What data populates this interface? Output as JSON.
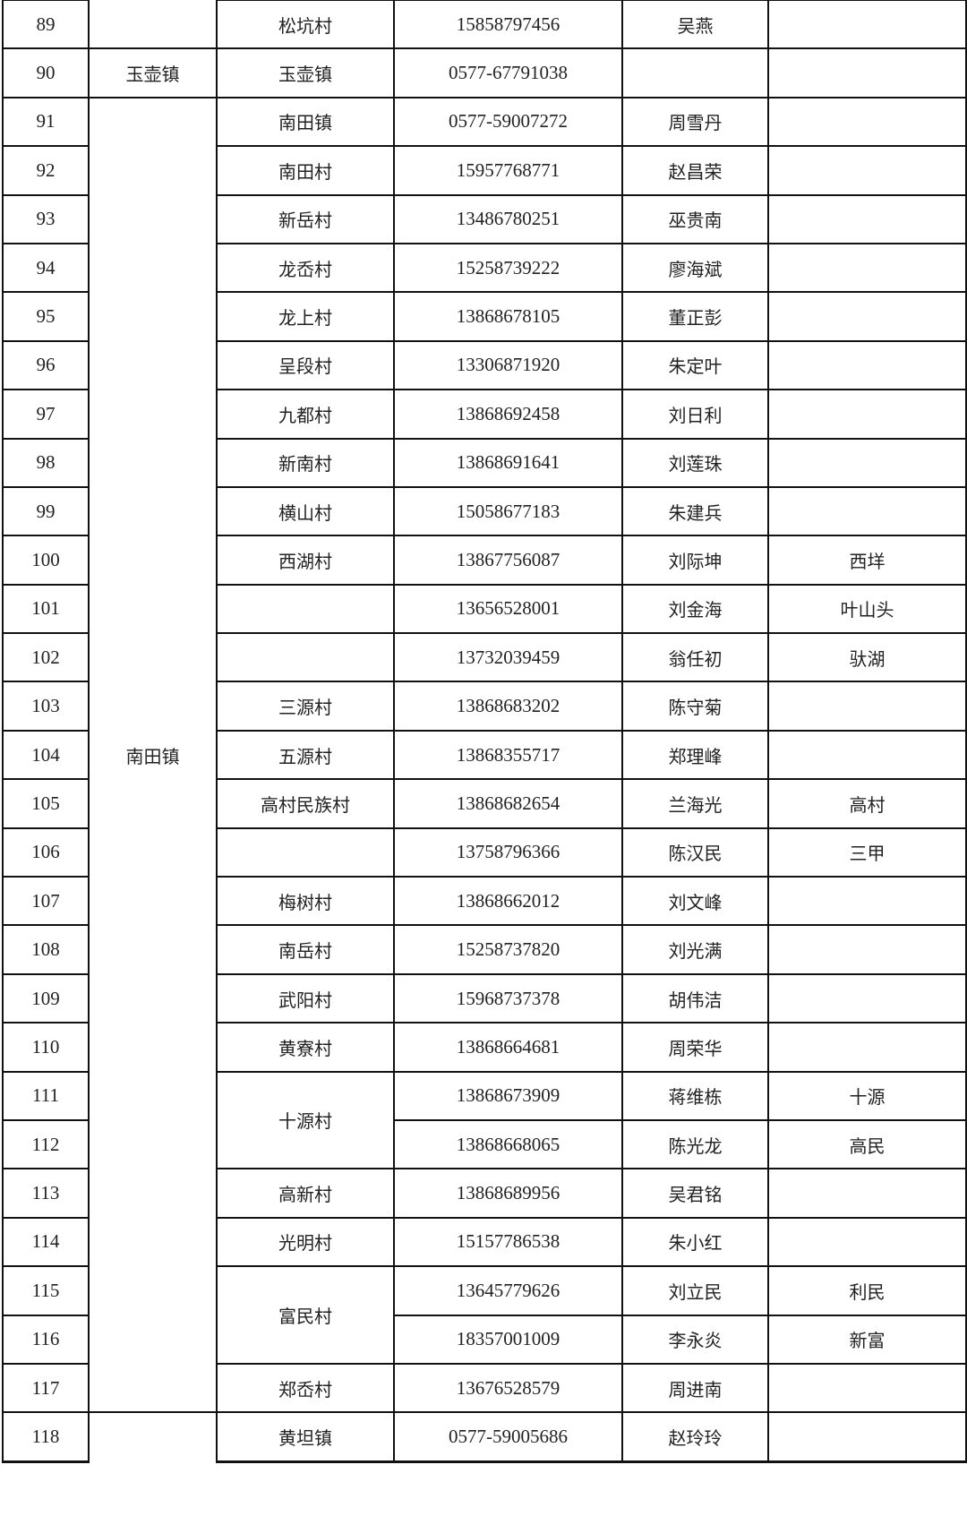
{
  "township_groups": [
    {
      "text": "",
      "rows": 1
    },
    {
      "text": "玉壶镇",
      "rows": 1
    },
    {
      "text": "南田镇",
      "rows": 27
    },
    {
      "text": "",
      "rows": 1
    }
  ],
  "rows": [
    {
      "no": "89",
      "village": "松坑村",
      "phone": "15858797456",
      "name": "吴燕",
      "note": ""
    },
    {
      "no": "90",
      "village": "玉壶镇",
      "phone": "0577-67791038",
      "name": "",
      "note": ""
    },
    {
      "no": "91",
      "village": "南田镇",
      "phone": "0577-59007272",
      "name": "周雪丹",
      "note": ""
    },
    {
      "no": "92",
      "village": "南田村",
      "phone": "15957768771",
      "name": "赵昌荣",
      "note": ""
    },
    {
      "no": "93",
      "village": "新岳村",
      "phone": "13486780251",
      "name": "巫贵南",
      "note": ""
    },
    {
      "no": "94",
      "village": "龙岙村",
      "phone": "15258739222",
      "name": "廖海斌",
      "note": ""
    },
    {
      "no": "95",
      "village": "龙上村",
      "phone": "13868678105",
      "name": "董正彭",
      "note": ""
    },
    {
      "no": "96",
      "village": "呈段村",
      "phone": "13306871920",
      "name": "朱定叶",
      "note": ""
    },
    {
      "no": "97",
      "village": "九都村",
      "phone": "13868692458",
      "name": "刘日利",
      "note": ""
    },
    {
      "no": "98",
      "village": "新南村",
      "phone": "13868691641",
      "name": "刘莲珠",
      "note": ""
    },
    {
      "no": "99",
      "village": "横山村",
      "phone": "15058677183",
      "name": "朱建兵",
      "note": ""
    },
    {
      "no": "100",
      "village": "西湖村",
      "phone": "13867756087",
      "name": "刘际坤",
      "note": "西垟"
    },
    {
      "no": "101",
      "village": "",
      "phone": "13656528001",
      "name": "刘金海",
      "note": "叶山头"
    },
    {
      "no": "102",
      "village": "",
      "phone": "13732039459",
      "name": "翁任初",
      "note": "驮湖"
    },
    {
      "no": "103",
      "village": "三源村",
      "phone": "13868683202",
      "name": "陈守菊",
      "note": ""
    },
    {
      "no": "104",
      "village": "五源村",
      "phone": "13868355717",
      "name": "郑理峰",
      "note": ""
    },
    {
      "no": "105",
      "village": "高村民族村",
      "phone": "13868682654",
      "name": "兰海光",
      "note": "高村"
    },
    {
      "no": "106",
      "village": "",
      "phone": "13758796366",
      "name": "陈汉民",
      "note": "三甲"
    },
    {
      "no": "107",
      "village": "梅树村",
      "phone": "13868662012",
      "name": "刘文峰",
      "note": ""
    },
    {
      "no": "108",
      "village": "南岳村",
      "phone": "15258737820",
      "name": "刘光满",
      "note": ""
    },
    {
      "no": "109",
      "village": "武阳村",
      "phone": "15968737378",
      "name": "胡伟洁",
      "note": ""
    },
    {
      "no": "110",
      "village": "黄寮村",
      "phone": "13868664681",
      "name": "周荣华",
      "note": ""
    },
    {
      "no": "111",
      "village": "十源村",
      "village_span": 2,
      "phone": "13868673909",
      "name": "蒋维栋",
      "note": "十源"
    },
    {
      "no": "112",
      "phone": "13868668065",
      "name": "陈光龙",
      "note": "高民"
    },
    {
      "no": "113",
      "village": "高新村",
      "phone": "13868689956",
      "name": "吴君铭",
      "note": ""
    },
    {
      "no": "114",
      "village": "光明村",
      "phone": "15157786538",
      "name": "朱小红",
      "note": ""
    },
    {
      "no": "115",
      "village": "富民村",
      "village_span": 2,
      "phone": "13645779626",
      "name": "刘立民",
      "note": "利民"
    },
    {
      "no": "116",
      "phone": "18357001009",
      "name": "李永炎",
      "note": "新富"
    },
    {
      "no": "117",
      "village": "郑岙村",
      "phone": "13676528579",
      "name": "周进南",
      "note": ""
    },
    {
      "no": "118",
      "village": "黄坦镇",
      "phone": "0577-59005686",
      "name": "赵玲玲",
      "note": ""
    }
  ]
}
